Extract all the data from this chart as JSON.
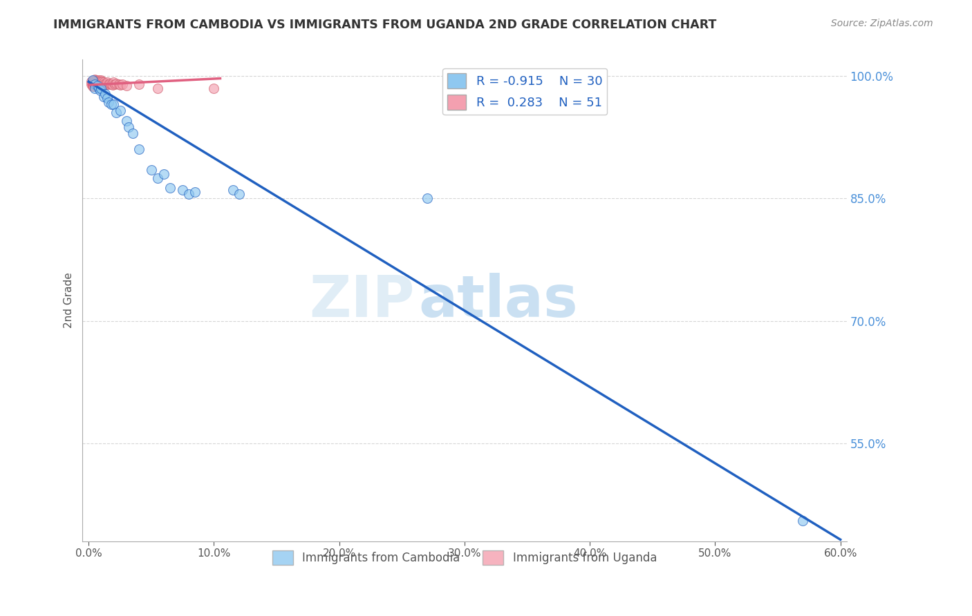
{
  "title": "IMMIGRANTS FROM CAMBODIA VS IMMIGRANTS FROM UGANDA 2ND GRADE CORRELATION CHART",
  "source": "Source: ZipAtlas.com",
  "ylabel": "2nd Grade",
  "watermark": "ZIPatlas",
  "legend_r1": "R = -0.915",
  "legend_n1": "N = 30",
  "legend_r2": "R =  0.283",
  "legend_n2": "N = 51",
  "color_cambodia": "#8fc8f0",
  "color_uganda": "#f4a0b0",
  "trendline_cambodia_color": "#2060c0",
  "trendline_uganda_color": "#e06080",
  "xlim": [
    -0.005,
    0.605
  ],
  "ylim": [
    0.43,
    1.02
  ],
  "xtick_vals": [
    0.0,
    0.1,
    0.2,
    0.3,
    0.4,
    0.5,
    0.6
  ],
  "xtick_labels": [
    "0.0%",
    "10.0%",
    "20.0%",
    "30.0%",
    "40.0%",
    "50.0%",
    "60.0%"
  ],
  "ytick_vals": [
    1.0,
    0.85,
    0.7,
    0.55
  ],
  "ytick_labels": [
    "100.0%",
    "85.0%",
    "70.0%",
    "55.0%"
  ],
  "cambodia_scatter_x": [
    0.003,
    0.005,
    0.005,
    0.007,
    0.008,
    0.009,
    0.01,
    0.012,
    0.013,
    0.015,
    0.016,
    0.018,
    0.02,
    0.022,
    0.025,
    0.03,
    0.032,
    0.035,
    0.04,
    0.05,
    0.055,
    0.06,
    0.065,
    0.075,
    0.08,
    0.085,
    0.115,
    0.12,
    0.27,
    0.57
  ],
  "cambodia_scatter_y": [
    0.995,
    0.99,
    0.985,
    0.988,
    0.985,
    0.982,
    0.985,
    0.975,
    0.978,
    0.973,
    0.968,
    0.965,
    0.965,
    0.955,
    0.958,
    0.945,
    0.937,
    0.93,
    0.91,
    0.885,
    0.875,
    0.88,
    0.863,
    0.86,
    0.855,
    0.858,
    0.86,
    0.855,
    0.85,
    0.455
  ],
  "uganda_scatter_x": [
    0.002,
    0.002,
    0.003,
    0.003,
    0.003,
    0.003,
    0.004,
    0.004,
    0.004,
    0.004,
    0.005,
    0.005,
    0.005,
    0.005,
    0.005,
    0.006,
    0.006,
    0.006,
    0.006,
    0.007,
    0.007,
    0.007,
    0.008,
    0.008,
    0.008,
    0.009,
    0.009,
    0.01,
    0.01,
    0.01,
    0.011,
    0.011,
    0.012,
    0.012,
    0.013,
    0.014,
    0.015,
    0.016,
    0.017,
    0.018,
    0.019,
    0.02,
    0.021,
    0.022,
    0.024,
    0.025,
    0.027,
    0.03,
    0.04,
    0.055,
    0.1
  ],
  "uganda_scatter_y": [
    0.993,
    0.99,
    0.994,
    0.992,
    0.99,
    0.987,
    0.994,
    0.992,
    0.99,
    0.987,
    0.996,
    0.994,
    0.992,
    0.99,
    0.987,
    0.995,
    0.993,
    0.991,
    0.988,
    0.994,
    0.992,
    0.989,
    0.995,
    0.993,
    0.99,
    0.993,
    0.99,
    0.995,
    0.993,
    0.99,
    0.993,
    0.99,
    0.992,
    0.989,
    0.991,
    0.99,
    0.992,
    0.99,
    0.991,
    0.99,
    0.989,
    0.992,
    0.99,
    0.991,
    0.99,
    0.989,
    0.99,
    0.988,
    0.99,
    0.985,
    0.985
  ],
  "cam_trendline_x": [
    0.0,
    0.6
  ],
  "cam_trendline_y": [
    0.993,
    0.432
  ],
  "ug_trendline_x": [
    0.0,
    0.105
  ],
  "ug_trendline_y": [
    0.989,
    0.997
  ]
}
